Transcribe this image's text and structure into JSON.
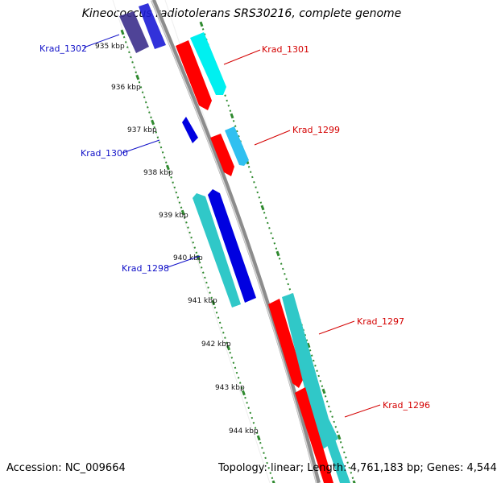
{
  "title": "Kineococcus radiotolerans SRS30216, complete genome",
  "footer": {
    "accession": "Accession: NC_009664",
    "summary": "Topology: linear; Length: 4,761,183 bp; Genes: 4,544"
  },
  "colors": {
    "backbone": "#8c8c8c",
    "tick_dots": "#2f8a2f",
    "forward_gene_dark": "#ff0000",
    "forward_gene_light": "#00e6e6",
    "reverse_gene_dark": "#0000e0",
    "reverse_gene_light": "#30c8c8",
    "forward_label": "#d40000",
    "reverse_label": "#1010c8"
  },
  "kbp_ticks": [
    "935 kbp",
    "936 kbp",
    "937 kbp",
    "938 kbp",
    "939 kbp",
    "940 kbp",
    "941 kbp",
    "942 kbp",
    "943 kbp",
    "944 kbp"
  ],
  "gene_labels": {
    "krad_1302": "Krad_1302",
    "krad_1301": "Krad_1301",
    "krad_1300": "Krad_1300",
    "krad_1299": "Krad_1299",
    "krad_1298": "Krad_1298",
    "krad_1297": "Krad_1297",
    "krad_1296": "Krad_1296"
  },
  "genes": [
    {
      "name": "Krad_1302",
      "strand": "reverse"
    },
    {
      "name": "Krad_1301",
      "strand": "forward"
    },
    {
      "name": "Krad_1300",
      "strand": "reverse"
    },
    {
      "name": "Krad_1299",
      "strand": "forward"
    },
    {
      "name": "Krad_1298",
      "strand": "reverse"
    },
    {
      "name": "Krad_1297",
      "strand": "forward"
    },
    {
      "name": "Krad_1296",
      "strand": "forward"
    }
  ]
}
